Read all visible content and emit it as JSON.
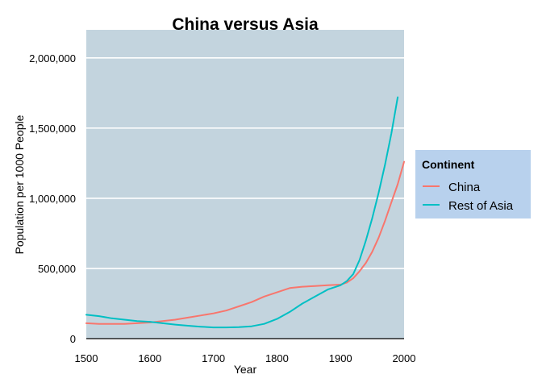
{
  "chart_data": {
    "type": "line",
    "title": "China versus Asia",
    "xlabel": "Year",
    "ylabel": "Population per 1000 People",
    "xlim": [
      1500,
      2000
    ],
    "ylim": [
      0,
      2200000
    ],
    "x_ticks": [
      1500,
      1600,
      1700,
      1800,
      1900,
      2000
    ],
    "x_tick_labels": [
      "1500",
      "1600",
      "1700",
      "1800",
      "1900",
      "2000"
    ],
    "y_ticks": [
      0,
      500000,
      1000000,
      1500000,
      2000000
    ],
    "y_tick_labels": [
      "0",
      "500,000",
      "1,000,000",
      "1,500,000",
      "2,000,000"
    ],
    "grid": true,
    "legend": {
      "title": "Continent",
      "position": "right"
    },
    "colors": {
      "panel_background": "#c3d4de",
      "legend_background": "#b8d1ed",
      "gridline": "#ffffff",
      "axis_line": "#000000"
    },
    "series": [
      {
        "name": "China",
        "color": "#f8766d",
        "x": [
          1500,
          1520,
          1540,
          1560,
          1580,
          1600,
          1620,
          1640,
          1660,
          1680,
          1700,
          1720,
          1740,
          1760,
          1780,
          1800,
          1820,
          1840,
          1860,
          1880,
          1900,
          1910,
          1920,
          1930,
          1940,
          1950,
          1960,
          1970,
          1980,
          1990,
          2000
        ],
        "values": [
          110000,
          105000,
          105000,
          105000,
          110000,
          115000,
          125000,
          135000,
          150000,
          165000,
          180000,
          200000,
          230000,
          260000,
          300000,
          330000,
          360000,
          370000,
          375000,
          380000,
          385000,
          400000,
          430000,
          480000,
          540000,
          620000,
          720000,
          840000,
          970000,
          1100000,
          1260000
        ]
      },
      {
        "name": "Rest of Asia",
        "color": "#00bfc4",
        "x": [
          1500,
          1520,
          1540,
          1560,
          1580,
          1600,
          1620,
          1640,
          1660,
          1680,
          1700,
          1720,
          1740,
          1760,
          1780,
          1800,
          1820,
          1840,
          1860,
          1880,
          1900,
          1910,
          1920,
          1930,
          1940,
          1950,
          1960,
          1970,
          1980,
          1990
        ],
        "values": [
          170000,
          160000,
          145000,
          135000,
          125000,
          120000,
          110000,
          100000,
          92000,
          85000,
          80000,
          80000,
          82000,
          88000,
          105000,
          140000,
          190000,
          250000,
          300000,
          350000,
          380000,
          410000,
          460000,
          560000,
          700000,
          860000,
          1040000,
          1240000,
          1460000,
          1720000
        ]
      }
    ]
  }
}
